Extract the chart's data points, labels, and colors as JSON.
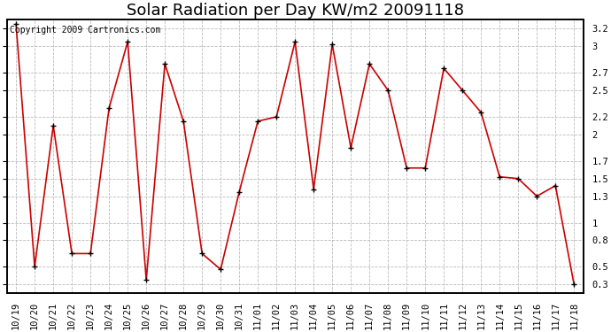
{
  "title": "Solar Radiation per Day KW/m2 20091118",
  "copyright_text": "Copyright 2009 Cartronics.com",
  "dates": [
    "10/19",
    "10/20",
    "10/21",
    "10/22",
    "10/23",
    "10/24",
    "10/25",
    "10/26",
    "10/27",
    "10/28",
    "10/29",
    "10/30",
    "10/31",
    "11/01",
    "11/02",
    "11/03",
    "11/04",
    "11/05",
    "11/06",
    "11/07",
    "11/08",
    "11/09",
    "11/10",
    "11/11",
    "11/12",
    "11/13",
    "11/14",
    "11/15",
    "11/16",
    "11/17",
    "11/18"
  ],
  "values": [
    3.25,
    0.5,
    2.1,
    0.65,
    0.65,
    2.3,
    3.05,
    0.35,
    2.8,
    2.15,
    0.65,
    0.47,
    1.35,
    2.15,
    2.2,
    3.05,
    1.38,
    3.02,
    1.85,
    2.8,
    2.5,
    1.62,
    1.62,
    2.75,
    2.5,
    2.25,
    1.52,
    1.5,
    1.3,
    1.42,
    0.3
  ],
  "line_color": "#cc0000",
  "marker_color": "#000000",
  "bg_color": "#ffffff",
  "grid_color": "#bbbbbb",
  "ylim_min": 0.2,
  "ylim_max": 3.3,
  "yticks": [
    0.3,
    0.5,
    0.8,
    1.0,
    1.3,
    1.5,
    1.7,
    2.0,
    2.2,
    2.5,
    2.7,
    3.0,
    3.2
  ],
  "title_fontsize": 13,
  "copyright_fontsize": 7,
  "tick_fontsize": 7.5,
  "fig_width": 6.9,
  "fig_height": 3.75,
  "dpi": 100
}
